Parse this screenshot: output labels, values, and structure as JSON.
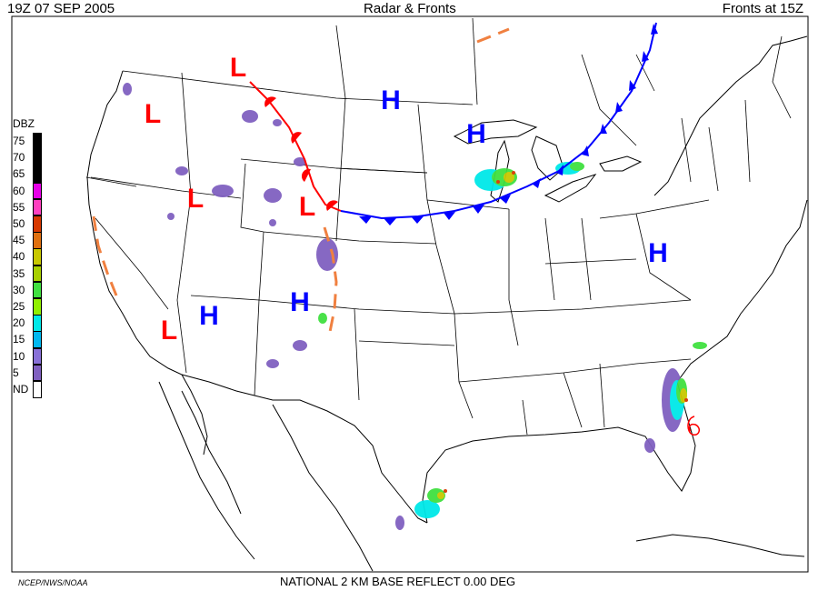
{
  "header": {
    "left": "19Z  07 SEP  2005",
    "center": "Radar & Fronts",
    "right": "Fronts at 15Z"
  },
  "legend": {
    "title": "DBZ",
    "entries": [
      {
        "label": "75",
        "color": "#000000"
      },
      {
        "label": "70",
        "color": "#000000"
      },
      {
        "label": "65",
        "color": "#000000"
      },
      {
        "label": "60",
        "color": "#e800e8"
      },
      {
        "label": "55",
        "color": "#ff40c0"
      },
      {
        "label": "50",
        "color": "#d83800"
      },
      {
        "label": "45",
        "color": "#e07010"
      },
      {
        "label": "40",
        "color": "#c8c800"
      },
      {
        "label": "35",
        "color": "#a8d000"
      },
      {
        "label": "30",
        "color": "#40e040"
      },
      {
        "label": "25",
        "color": "#90f000"
      },
      {
        "label": "20",
        "color": "#00e8e8"
      },
      {
        "label": "15",
        "color": "#00b8f0"
      },
      {
        "label": "10",
        "color": "#8870d8"
      },
      {
        "label": "5",
        "color": "#8060c0"
      },
      {
        "label": "ND",
        "color": "#ffffff"
      }
    ]
  },
  "pressure_centers": [
    {
      "type": "L",
      "color": "#ff0000",
      "name": "low-montana"
    },
    {
      "type": "L",
      "color": "#ff0000",
      "name": "low-oregon"
    },
    {
      "type": "L",
      "color": "#ff0000",
      "name": "low-idaho"
    },
    {
      "type": "L",
      "color": "#ff0000",
      "name": "low-colorado"
    },
    {
      "type": "L",
      "color": "#ff0000",
      "name": "low-arizona"
    },
    {
      "type": "H",
      "color": "#0000ff",
      "name": "high-north-dakota"
    },
    {
      "type": "H",
      "color": "#0000ff",
      "name": "high-wisconsin"
    },
    {
      "type": "H",
      "color": "#0000ff",
      "name": "high-utah"
    },
    {
      "type": "H",
      "color": "#0000ff",
      "name": "high-new-mexico"
    },
    {
      "type": "H",
      "color": "#0000ff",
      "name": "high-virginia"
    }
  ],
  "fronts": {
    "warm_color": "#ff0000",
    "cold_color": "#0000ff",
    "trough_color": "#f08040"
  },
  "footer": {
    "left": "NCEP/NWS/NOAA",
    "center": "NATIONAL 2 KM BASE REFLECT 0.00 DEG"
  }
}
